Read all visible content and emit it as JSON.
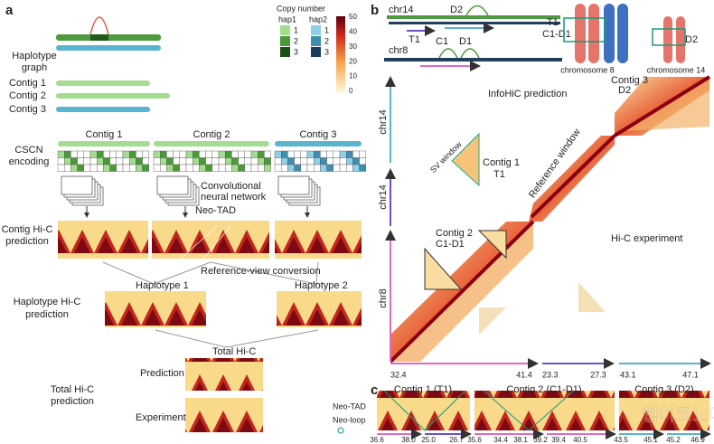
{
  "a": {
    "label": "a",
    "haplotype_graph": [
      "Haplotype",
      "graph"
    ],
    "copy_number": "Copy number",
    "hap1": "hap1",
    "hap2": "hap2",
    "hap1_levels": [
      "1",
      "2",
      "3"
    ],
    "hap2_levels": [
      "1",
      "2",
      "3"
    ],
    "colorbar_ticks": [
      "50",
      "40",
      "30",
      "20",
      "10",
      "0"
    ],
    "contigs": [
      "Contig 1",
      "Contig 2",
      "Contig 3"
    ],
    "cscn": [
      "CSCN",
      "encoding"
    ],
    "cscn_headers": [
      "Contig 1",
      "Contig 2",
      "Contig 3"
    ],
    "cnn": [
      "Convolutional",
      "neural network"
    ],
    "neo_tad": "Neo-TAD",
    "contig_hic": [
      "Contig Hi-C",
      "prediction"
    ],
    "ref_view": "Reference-view conversion",
    "haplotype1": "Haplotype 1",
    "haplotype2": "Haplotype  2",
    "haplotype_hic": [
      "Haplotype Hi-C",
      "prediction"
    ],
    "total_hic": "Total Hi-C",
    "prediction": "Prediction",
    "experiment": "Experiment",
    "total_hic_pred": [
      "Total Hi-C",
      "prediction"
    ]
  },
  "b": {
    "label": "b",
    "chr14": "chr14",
    "d2": "D2",
    "chr8": "chr8",
    "t1": "T1",
    "c1": "C1",
    "d1": "D1",
    "ideo_t1": "T1",
    "ideo_c1d1": "C1-D1",
    "ideo_d2": "D2",
    "chromosome8": "chromosome 8",
    "chromosome14": "chromosome 14",
    "infohic": "InfoHiC prediction",
    "contig3": [
      "Contig 3",
      "D2"
    ],
    "axis_chr14a": "chr14",
    "axis_chr14b": "chr14",
    "axis_chr8": "chr8",
    "sv_window": "SV window",
    "contig1": [
      "Contig 1",
      "T1"
    ],
    "ref_window": "Reference window",
    "contig2": [
      "Contig 2",
      "C1-D1"
    ],
    "hic_exp": "Hi-C experiment",
    "xticks": [
      "32.4",
      "41.4",
      "23.3",
      "27.3",
      "43.1",
      "47.1"
    ]
  },
  "c": {
    "label": "c",
    "neo_tad": "Neo-TAD",
    "neo_loop": "Neo-loop",
    "titles": [
      "Contig 1 (T1)",
      "Contig 2 (C1-D1)",
      "Contig 3 (D2)"
    ],
    "ticks": [
      "36.6",
      "38.0",
      "25.0",
      "26.7",
      "35.6",
      "34.4",
      "38.1",
      "39.2",
      "39.4",
      "40.5",
      "43.5",
      "45.1",
      "45.2",
      "46.9"
    ]
  },
  "watermark": "웹이코노미"
}
